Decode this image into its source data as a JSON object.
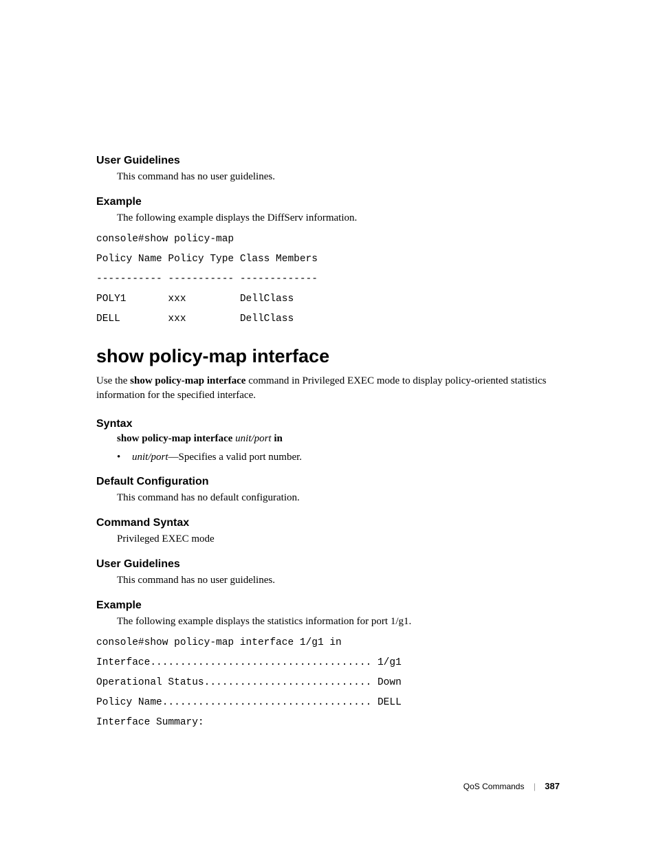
{
  "sec1": {
    "heading": "User Guidelines",
    "text": "This command has no user guidelines."
  },
  "sec2": {
    "heading": "Example",
    "text": "The following example displays the DiffServ information."
  },
  "code1": "console#show policy-map\nPolicy Name Policy Type Class Members\n----------- ----------- -------------\nPOLY1       xxx         DellClass\nDELL        xxx         DellClass",
  "title": "show policy-map interface",
  "intro": {
    "pre": "Use the ",
    "bold": "show policy-map interface",
    "post": " command in Privileged EXEC mode to display policy-oriented statistics information for the specified interface."
  },
  "syntax": {
    "heading": "Syntax",
    "line": {
      "bold1": "show policy-map interface ",
      "italic": "unit/port",
      "bold2": " in"
    },
    "bullet": {
      "italic": "unit/port",
      "rest": "—Specifies a valid port number."
    }
  },
  "default": {
    "heading": "Default Configuration",
    "text": "This command has no default configuration."
  },
  "cmdsyntax": {
    "heading": "Command Syntax",
    "text": "Privileged EXEC mode"
  },
  "ug2": {
    "heading": "User Guidelines",
    "text": "This command has no user guidelines."
  },
  "ex2": {
    "heading": "Example",
    "text": "The following example displays the statistics information for port 1/g1."
  },
  "code2": "console#show policy-map interface 1/g1 in\nInterface..................................... 1/g1\nOperational Status............................ Down\nPolicy Name................................... DELL\nInterface Summary:",
  "footer": {
    "label": "QoS Commands",
    "page": "387"
  }
}
